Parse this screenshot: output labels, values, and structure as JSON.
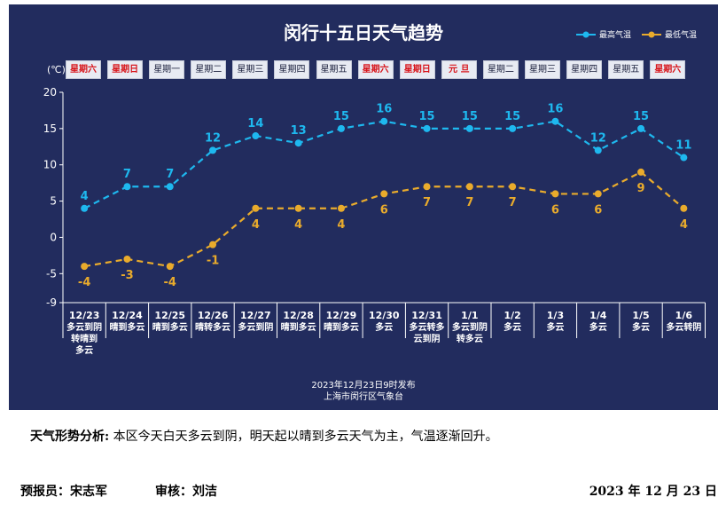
{
  "chart_data": {
    "type": "line",
    "title": "闵行十五日天气趋势",
    "ylabel": "(℃)",
    "ylim": [
      -9,
      20
    ],
    "yticks": [
      -9,
      -5,
      0,
      5,
      10,
      15,
      20
    ],
    "days": [
      "星期六",
      "星期日",
      "星期一",
      "星期二",
      "星期三",
      "星期四",
      "星期五",
      "星期六",
      "星期日",
      "元 旦",
      "星期二",
      "星期三",
      "星期四",
      "星期五",
      "星期六"
    ],
    "holiday_flags": [
      true,
      true,
      false,
      false,
      false,
      false,
      false,
      true,
      true,
      true,
      false,
      false,
      false,
      false,
      true
    ],
    "dates": [
      "12/23",
      "12/24",
      "12/25",
      "12/26",
      "12/27",
      "12/28",
      "12/29",
      "12/30",
      "12/31",
      "1/1",
      "1/2",
      "1/3",
      "1/4",
      "1/5",
      "1/6"
    ],
    "weather": [
      [
        "多云到阴",
        "转晴到",
        "多云"
      ],
      [
        "晴到多云"
      ],
      [
        "晴到多云"
      ],
      [
        "晴转多云"
      ],
      [
        "多云到阴"
      ],
      [
        "晴到多云"
      ],
      [
        "晴到多云"
      ],
      [
        "多云"
      ],
      [
        "多云转多",
        "云到阴"
      ],
      [
        "多云到阴",
        "转多云"
      ],
      [
        "多云"
      ],
      [
        "多云"
      ],
      [
        "多云"
      ],
      [
        "多云"
      ],
      [
        "多云转阴"
      ]
    ],
    "series": [
      {
        "name": "最高气温",
        "color": "#1eb8ef",
        "values": [
          4,
          7,
          7,
          12,
          14,
          13,
          15,
          16,
          15,
          15,
          15,
          16,
          12,
          15,
          11
        ]
      },
      {
        "name": "最低气温",
        "color": "#e9ab2c",
        "values": [
          -4,
          -3,
          -4,
          -1,
          4,
          4,
          4,
          6,
          7,
          7,
          7,
          6,
          6,
          9,
          4
        ]
      }
    ],
    "publish_time": "2023年12月23日9时发布",
    "publisher": "上海市闵行区气象台"
  },
  "analysis": {
    "label": "天气形势分析:",
    "text": "本区今天白天多云到阴，明天起以晴到多云天气为主，气温逐渐回升。"
  },
  "footer": {
    "forecaster": "预报员：宋志军",
    "reviewer": "审核：刘洁",
    "date": "2023 年 12 月 23 日"
  }
}
